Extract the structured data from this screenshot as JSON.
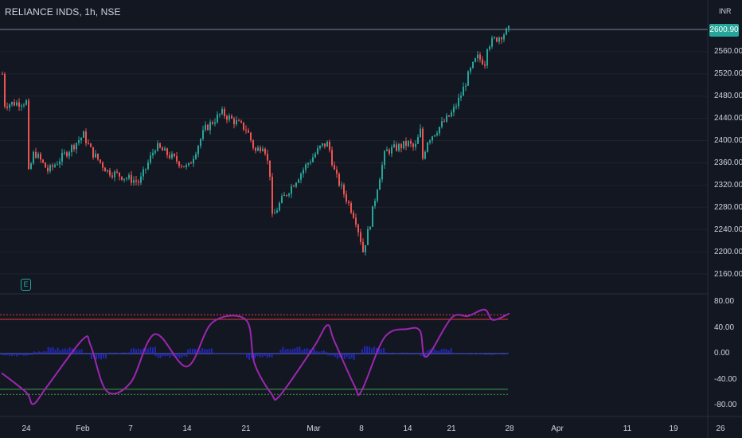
{
  "header": {
    "symbol": "RELIANCE INDS, 1h, NSE",
    "currency": "INR"
  },
  "price_axis": {
    "labels": [
      "2600.90",
      "2560.00",
      "2520.00",
      "2480.00",
      "2440.00",
      "2400.00",
      "2360.00",
      "2320.00",
      "2280.00",
      "2240.00",
      "2200.00",
      "2160.00"
    ],
    "last_price": "2600.90"
  },
  "oscillator_axis": {
    "labels": [
      "80.00",
      "40.00",
      "0.00",
      "-40.00",
      "-80.00"
    ]
  },
  "time_axis": {
    "labels": [
      "24",
      "Feb",
      "7",
      "14",
      "21",
      "Mar",
      "8",
      "14",
      "21",
      "28",
      "Apr",
      "11",
      "19",
      "26"
    ]
  },
  "earnings_marker": "E",
  "colors": {
    "background": "#131722",
    "up": "#26a69a",
    "down": "#ef5350",
    "oscillator": "#9c27b0",
    "histogram": "#2a2ee0",
    "overbought": "#e53935",
    "oversold": "#43a047",
    "zero_line": "#5b6abf"
  },
  "chart_data": [
    {
      "type": "candlestick",
      "title": "RELIANCE INDS, 1h, NSE",
      "ylim": [
        2140,
        2620
      ],
      "x_period_labels": [
        "24",
        "Feb",
        "7",
        "14",
        "21",
        "Mar",
        "8",
        "14",
        "21",
        "28"
      ],
      "last_close": 2600.9,
      "close_path": [
        {
          "x": "Jan 21",
          "close": 2520
        },
        {
          "x": "Jan 21",
          "close": 2465
        },
        {
          "x": "Jan 24",
          "close": 2470
        },
        {
          "x": "Jan 24",
          "close": 2330
        },
        {
          "x": "Jan 25",
          "close": 2380
        },
        {
          "x": "Jan 27",
          "close": 2345
        },
        {
          "x": "Feb 1",
          "close": 2410
        },
        {
          "x": "Feb 2",
          "close": 2380
        },
        {
          "x": "Feb 4",
          "close": 2345
        },
        {
          "x": "Feb 8",
          "close": 2325
        },
        {
          "x": "Feb 10",
          "close": 2390
        },
        {
          "x": "Feb 14",
          "close": 2350
        },
        {
          "x": "Feb 16",
          "close": 2420
        },
        {
          "x": "Feb 18",
          "close": 2450
        },
        {
          "x": "Feb 21",
          "close": 2420
        },
        {
          "x": "Feb 22",
          "close": 2380
        },
        {
          "x": "Feb 23",
          "close": 2395
        },
        {
          "x": "Feb 24",
          "close": 2320
        },
        {
          "x": "Feb 24",
          "close": 2260
        },
        {
          "x": "Feb 25",
          "close": 2290
        },
        {
          "x": "Feb 28",
          "close": 2355
        },
        {
          "x": "Mar 2",
          "close": 2390
        },
        {
          "x": "Mar 3",
          "close": 2395
        },
        {
          "x": "Mar 4",
          "close": 2340
        },
        {
          "x": "Mar 7",
          "close": 2260
        },
        {
          "x": "Mar 8",
          "close": 2210
        },
        {
          "x": "Mar 8",
          "close": 2195
        },
        {
          "x": "Mar 9",
          "close": 2250
        },
        {
          "x": "Mar 10",
          "close": 2320
        },
        {
          "x": "Mar 11",
          "close": 2380
        },
        {
          "x": "Mar 14",
          "close": 2395
        },
        {
          "x": "Mar 15",
          "close": 2385
        },
        {
          "x": "Mar 16",
          "close": 2420
        },
        {
          "x": "Mar 16",
          "close": 2355
        },
        {
          "x": "Mar 17",
          "close": 2400
        },
        {
          "x": "Mar 21",
          "close": 2450
        },
        {
          "x": "Mar 22",
          "close": 2480
        },
        {
          "x": "Mar 23",
          "close": 2520
        },
        {
          "x": "Mar 24",
          "close": 2550
        },
        {
          "x": "Mar 25",
          "close": 2540
        },
        {
          "x": "Mar 25",
          "close": 2570
        },
        {
          "x": "Mar 28",
          "close": 2600.9
        }
      ]
    },
    {
      "type": "line",
      "title": "",
      "ylim": [
        -100,
        90
      ],
      "overbought_level": 53,
      "oversold_level": -55,
      "series": [
        {
          "values": [
            {
              "x": "Jan 21",
              "y": -30
            },
            {
              "x": "Jan 24",
              "y": -60
            },
            {
              "x": "Jan 25",
              "y": -78
            },
            {
              "x": "Jan 27",
              "y": -50
            },
            {
              "x": "Feb 1",
              "y": 22
            },
            {
              "x": "Feb 2",
              "y": 12
            },
            {
              "x": "Feb 4",
              "y": -58
            },
            {
              "x": "Feb 7",
              "y": -45
            },
            {
              "x": "Feb 10",
              "y": 30
            },
            {
              "x": "Feb 14",
              "y": -20
            },
            {
              "x": "Feb 17",
              "y": 48
            },
            {
              "x": "Feb 21",
              "y": 52
            },
            {
              "x": "Feb 22",
              "y": -15
            },
            {
              "x": "Feb 24",
              "y": -62
            },
            {
              "x": "Feb 25",
              "y": -65
            },
            {
              "x": "Mar 1",
              "y": 10
            },
            {
              "x": "Mar 3",
              "y": 44
            },
            {
              "x": "Mar 4",
              "y": 20
            },
            {
              "x": "Mar 7",
              "y": -50
            },
            {
              "x": "Mar 8",
              "y": -58
            },
            {
              "x": "Mar 11",
              "y": 25
            },
            {
              "x": "Mar 14",
              "y": 38
            },
            {
              "x": "Mar 16",
              "y": 35
            },
            {
              "x": "Mar 17",
              "y": -5
            },
            {
              "x": "Mar 21",
              "y": 55
            },
            {
              "x": "Mar 23",
              "y": 58
            },
            {
              "x": "Mar 25",
              "y": 68
            },
            {
              "x": "Mar 26",
              "y": 52
            },
            {
              "x": "Mar 28",
              "y": 62
            }
          ]
        }
      ]
    }
  ]
}
